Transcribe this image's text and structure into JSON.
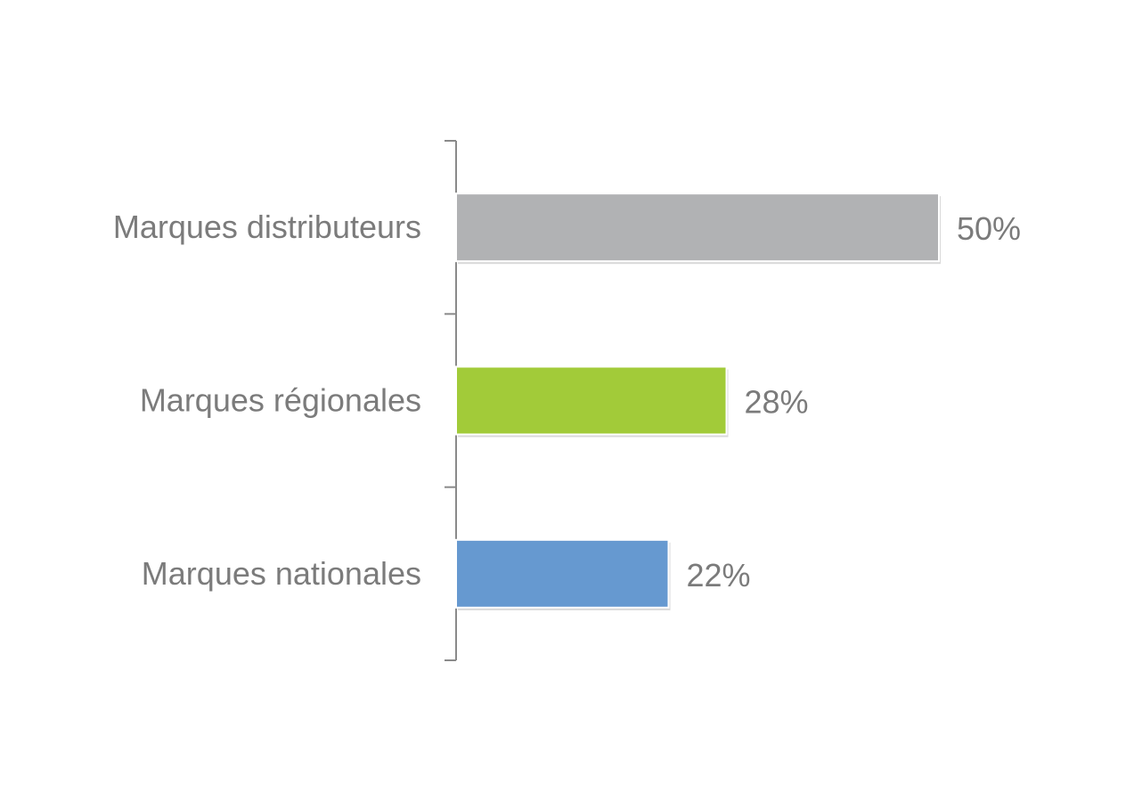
{
  "chart_data": {
    "type": "bar",
    "orientation": "horizontal",
    "categories": [
      "Marques distributeurs",
      "Marques régionales",
      "Marques nationales"
    ],
    "values": [
      50,
      28,
      22
    ],
    "value_labels": [
      "50%",
      "28%",
      "22%"
    ],
    "colors": [
      "#b1b2b4",
      "#a2cb39",
      "#6699d0"
    ],
    "title": "",
    "xlabel": "",
    "ylabel": "",
    "xlim": [
      0,
      50
    ],
    "grid": false,
    "legend": "none"
  }
}
